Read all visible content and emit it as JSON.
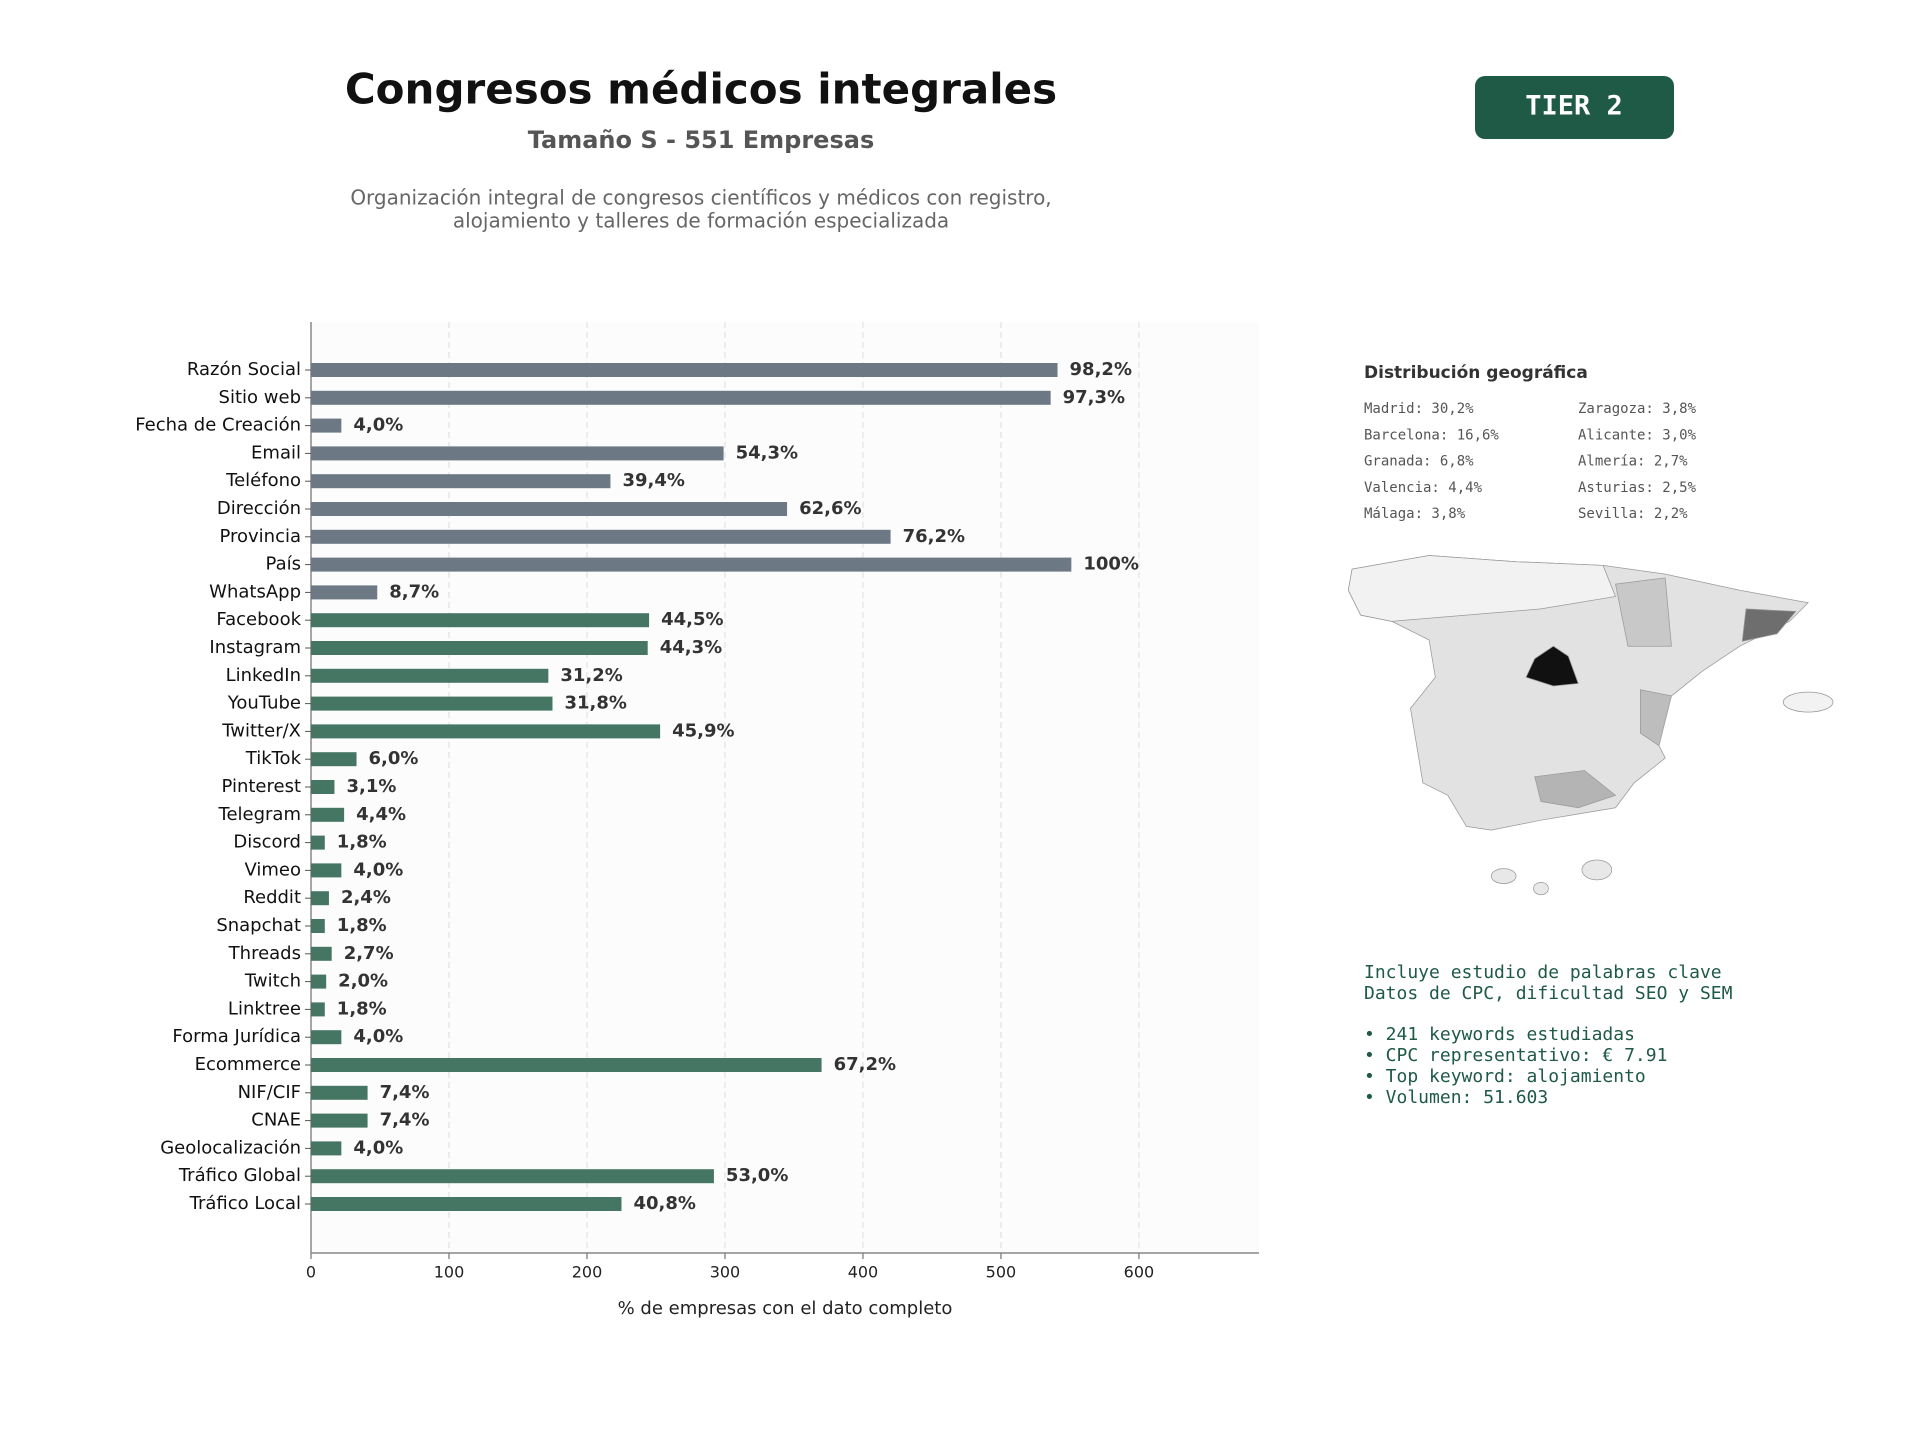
{
  "header": {
    "title": "Congresos médicos integrales",
    "subtitle": "Tamaño S - 551 Empresas",
    "description": [
      "Organización integral de congresos científicos y médicos con registro,",
      "alojamiento y talleres de formación especializada"
    ],
    "badge": "TIER 2"
  },
  "chart_data": {
    "type": "bar",
    "orientation": "horizontal",
    "categories": [
      "Razón Social",
      "Sitio web",
      "Fecha de Creación",
      "Email",
      "Teléfono",
      "Dirección",
      "Provincia",
      "País",
      "WhatsApp",
      "Facebook",
      "Instagram",
      "LinkedIn",
      "YouTube",
      "Twitter/X",
      "TikTok",
      "Pinterest",
      "Telegram",
      "Discord",
      "Vimeo",
      "Reddit",
      "Snapchat",
      "Threads",
      "Twitch",
      "Linktree",
      "Forma Jurídica",
      "Ecommerce",
      "NIF/CIF",
      "CNAE",
      "Geolocalización",
      "Tráfico Global",
      "Tráfico Local"
    ],
    "values": [
      541,
      536,
      22,
      299,
      217,
      345,
      420,
      551,
      48,
      245,
      244,
      172,
      175,
      253,
      33,
      17,
      24,
      10,
      22,
      13,
      10,
      15,
      11,
      10,
      22,
      370,
      41,
      41,
      22,
      292,
      225
    ],
    "value_labels": [
      "98,2%",
      "97,3%",
      "4,0%",
      "54,3%",
      "39,4%",
      "62,6%",
      "76,2%",
      "100%",
      "8,7%",
      "44,5%",
      "44,3%",
      "31,2%",
      "31,8%",
      "45,9%",
      "6,0%",
      "3,1%",
      "4,4%",
      "1,8%",
      "4,0%",
      "2,4%",
      "1,8%",
      "2,7%",
      "2,0%",
      "1,8%",
      "4,0%",
      "67,2%",
      "7,4%",
      "7,4%",
      "4,0%",
      "53,0%",
      "40,8%"
    ],
    "colors": [
      "#6c7883",
      "#6c7883",
      "#6c7883",
      "#6c7883",
      "#6c7883",
      "#6c7883",
      "#6c7883",
      "#6c7883",
      "#6c7883",
      "#457563",
      "#457563",
      "#457563",
      "#457563",
      "#457563",
      "#457563",
      "#457563",
      "#457563",
      "#457563",
      "#457563",
      "#457563",
      "#457563",
      "#457563",
      "#457563",
      "#457563",
      "#457563",
      "#457563",
      "#457563",
      "#457563",
      "#457563",
      "#457563",
      "#457563"
    ],
    "xlim": [
      0,
      687
    ],
    "xticks": [
      0,
      100,
      200,
      300,
      400,
      500,
      600
    ],
    "xlabel": "% de empresas con el dato completo",
    "grid": true
  },
  "side": {
    "map_title": "Distribución geográfica",
    "regions": [
      [
        "Madrid: 30,2%",
        "Barcelona: 16,6%",
        "Granada: 6,8%",
        "Valencia: 4,4%",
        "Málaga: 3,8%"
      ],
      [
        "Zaragoza: 3,8%",
        "Alicante: 3,0%",
        "Almería: 2,7%",
        "Asturias: 2,5%",
        "Sevilla: 2,2%"
      ]
    ],
    "keywords_intro": [
      "Incluye estudio de palabras clave",
      "Datos de CPC, dificultad SEO y SEM"
    ],
    "keywords": [
      "• 241 keywords estudiadas",
      "• CPC representativo: € 7.91",
      "• Top keyword: alojamiento",
      "• Volumen: 51.603"
    ]
  }
}
